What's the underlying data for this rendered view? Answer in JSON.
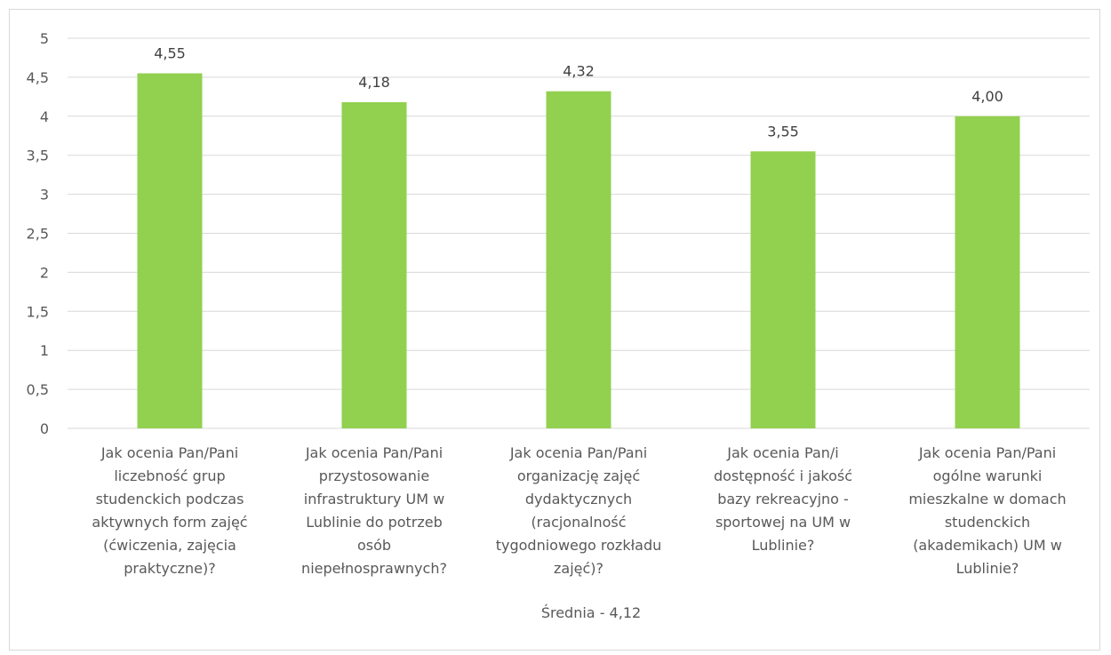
{
  "chart_data": {
    "type": "bar",
    "categories": [
      [
        "Jak ocenia Pan/Pani",
        "liczebność grup",
        "studenckich podczas",
        "aktywnych form zajęć",
        "(ćwiczenia, zajęcia",
        "praktyczne)?"
      ],
      [
        "Jak ocenia Pan/Pani",
        "przystosowanie",
        "infrastruktury UM w",
        "Lublinie do potrzeb",
        "osób",
        "niepełnosprawnych?"
      ],
      [
        "Jak ocenia Pan/Pani",
        "organizację zajęć",
        "dydaktycznych",
        "(racjonalność",
        "tygodniowego rozkładu",
        "zajęć)?"
      ],
      [
        "Jak ocenia Pan/i",
        "dostępność i jakość",
        "bazy rekreacyjno -",
        "sportowej na UM w",
        "Lublinie?"
      ],
      [
        "Jak ocenia Pan/Pani",
        "ogólne warunki",
        "mieszkalne w domach",
        "studenckich",
        "(akademikach) UM w",
        "Lublinie?"
      ]
    ],
    "values": [
      4.55,
      4.18,
      4.32,
      3.55,
      4.0
    ],
    "data_labels": [
      "4,55",
      "4,18",
      "4,32",
      "3,55",
      "4,00"
    ],
    "y_ticks": [
      "0",
      "0,5",
      "1",
      "1,5",
      "2",
      "2,5",
      "3",
      "3,5",
      "4",
      "4,5",
      "5"
    ],
    "ylim": [
      0,
      5
    ],
    "xlabel": "Średnia - 4,12",
    "grid": true,
    "bar_color": "#92d050",
    "grid_color": "#d9d9d9"
  }
}
